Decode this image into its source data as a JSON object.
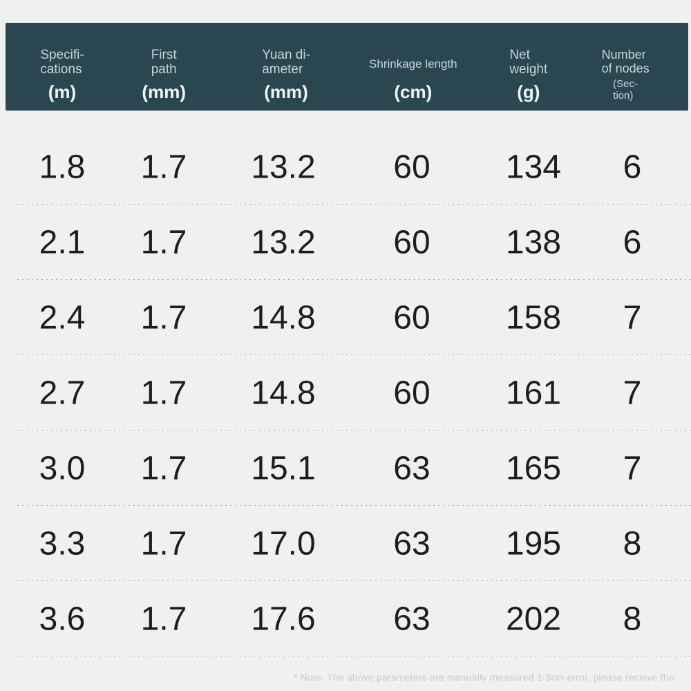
{
  "chart_data": {
    "type": "table",
    "title": "Product specification table",
    "columns": [
      "Specifications (m)",
      "First path (mm)",
      "Yuan diameter (mm)",
      "Shrinkage length (cm)",
      "Net weight (g)",
      "Number of nodes (Section)"
    ],
    "rows": [
      [
        "1.8",
        "1.7",
        "13.2",
        "60",
        "134",
        "6"
      ],
      [
        "2.1",
        "1.7",
        "13.2",
        "60",
        "138",
        "6"
      ],
      [
        "2.4",
        "1.7",
        "14.8",
        "60",
        "158",
        "7"
      ],
      [
        "2.7",
        "1.7",
        "14.8",
        "60",
        "161",
        "7"
      ],
      [
        "3.0",
        "1.7",
        "15.1",
        "63",
        "165",
        "7"
      ],
      [
        "3.3",
        "1.7",
        "17.0",
        "63",
        "195",
        "8"
      ],
      [
        "3.6",
        "1.7",
        "17.6",
        "63",
        "202",
        "8"
      ]
    ],
    "layout": {
      "header_position": "top",
      "row_separators": "dotted",
      "grid": "off"
    }
  },
  "header": {
    "columns": [
      {
        "label_lines": [
          "Specifi-",
          "cations"
        ],
        "unit_lines": [
          "(m)"
        ]
      },
      {
        "label_lines": [
          "First",
          "path"
        ],
        "unit_lines": [
          "(mm)"
        ]
      },
      {
        "label_lines": [
          "Yuan di-",
          "ameter"
        ],
        "unit_lines": [
          "(mm)"
        ]
      },
      {
        "label_lines": [
          "Shrinkage length"
        ],
        "unit_lines": [
          "(cm)"
        ]
      },
      {
        "label_lines": [
          "Net",
          "weight"
        ],
        "unit_lines": [
          "(g)"
        ]
      },
      {
        "label_lines": [
          "Number",
          "of nodes"
        ],
        "unit_lines": [
          "(Sec-",
          "tion)"
        ]
      }
    ]
  },
  "footnote": "* Note: The above parameters are manually measured 1-3cm error, please receive the",
  "colors": {
    "page_bg": "#eef0f1",
    "header_bg": "#2a4751",
    "header_label": "#c9d4d8",
    "header_unit": "#f0f5f6",
    "data_text": "#1d1d1d",
    "separator": "#a8aaac",
    "footnote_text": "#c9cbcd"
  }
}
